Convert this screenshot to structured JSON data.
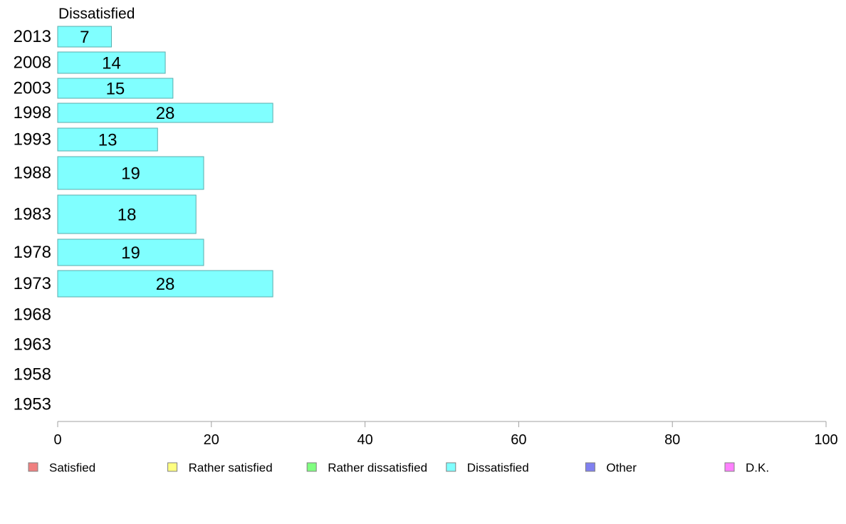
{
  "chart_data": {
    "type": "bar",
    "orientation": "horizontal",
    "title": "Dissatisfied",
    "categories": [
      "2013",
      "2008",
      "2003",
      "1998",
      "1993",
      "1988",
      "1983",
      "1978",
      "1973",
      "1968",
      "1963",
      "1958",
      "1953"
    ],
    "series": [
      {
        "name": "Dissatisfied",
        "values": [
          7,
          14,
          15,
          28,
          13,
          19,
          18,
          19,
          28,
          null,
          null,
          null,
          null
        ],
        "color": "#80ffff"
      }
    ],
    "xlim": [
      0,
      100
    ],
    "xticks": [
      0,
      20,
      40,
      60,
      80,
      100
    ],
    "legend": {
      "position": "bottom",
      "entries": [
        {
          "label": "Satisfied",
          "color": "#f08080"
        },
        {
          "label": "Rather satisfied",
          "color": "#ffff80"
        },
        {
          "label": "Rather dissatisfied",
          "color": "#80ff80"
        },
        {
          "label": "Dissatisfied",
          "color": "#80ffff"
        },
        {
          "label": "Other",
          "color": "#8080f0"
        },
        {
          "label": "D.K.",
          "color": "#ff80ff"
        }
      ]
    }
  }
}
